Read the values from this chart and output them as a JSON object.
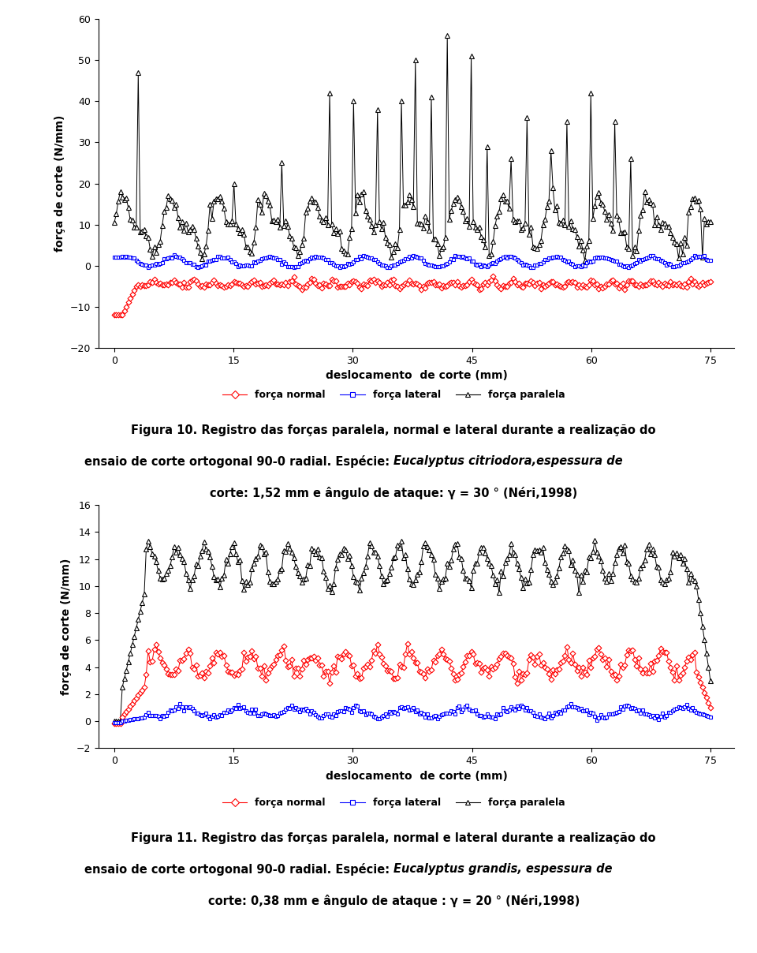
{
  "fig_width": 9.6,
  "fig_height": 12.08,
  "dpi": 100,
  "plot1": {
    "ylabel": "força de corte (N/mm)",
    "xlabel": "deslocamento  de corte (mm)",
    "ylim": [
      -20,
      60
    ],
    "xlim": [
      -2,
      78
    ],
    "yticks": [
      -20,
      -10,
      0,
      10,
      20,
      30,
      40,
      50,
      60
    ],
    "xticks": [
      0,
      15,
      30,
      45,
      60,
      75
    ]
  },
  "plot2": {
    "ylabel": "força de corte (N/mm)",
    "xlabel": "deslocamento  de corte (mm)",
    "ylim": [
      -2,
      16
    ],
    "xlim": [
      -2,
      78
    ],
    "yticks": [
      -2,
      0,
      2,
      4,
      6,
      8,
      10,
      12,
      14,
      16
    ],
    "xticks": [
      0,
      15,
      30,
      45,
      60,
      75
    ]
  },
  "caption1_line1": "Figura 10. Registro das forças paralela, normal e lateral durante a realização do",
  "caption1_line2a": "ensaio de corte ortogonal 90-0 radial. Espécie: ",
  "caption1_italic": "Eucalyptus citriodora",
  "caption1_line2b": ",espessura de",
  "caption1_line3a": "corte: 1,52 mm e ângulo de ataque: γ = 30 ",
  "caption1_super": "0",
  "caption1_line3b": " (Néri,1998)",
  "caption2_line1": "Figura 11. Registro das forças paralela, normal e lateral durante a realização do",
  "caption2_line2a": "ensaio de corte ortogonal 90-0 radial. Espécie: ",
  "caption2_italic": "Eucalyptus grandis",
  "caption2_line2b": ", espessura de",
  "caption2_line3a": "corte: 0,38 mm e ângulo de ataque : γ = 20 ",
  "caption2_super": "0",
  "caption2_line3b": " (Néri,1998)",
  "legend_labels": [
    "força normal",
    "força lateral",
    "força paralela"
  ]
}
